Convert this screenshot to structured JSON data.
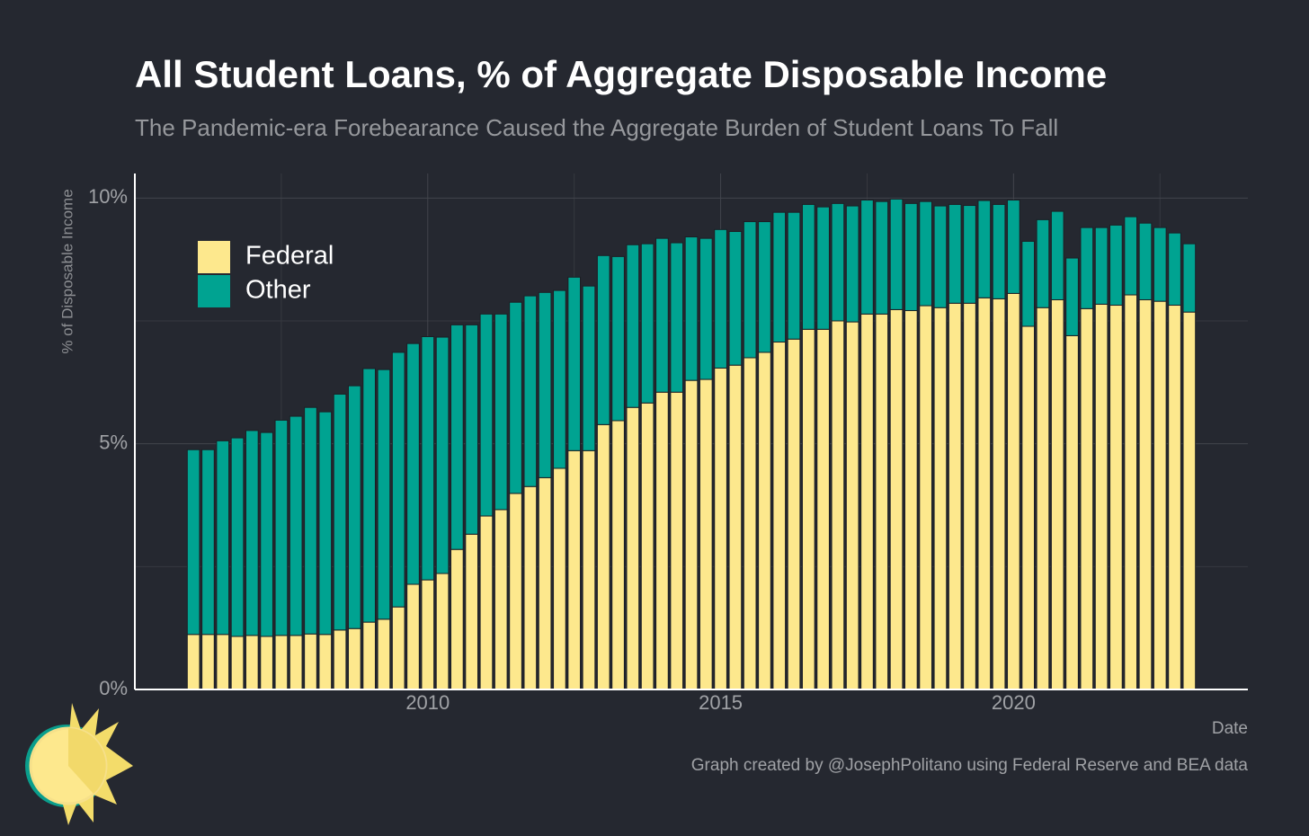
{
  "chart_data": {
    "type": "stacked-bar",
    "title": "All Student Loans, % of Aggregate Disposable Income",
    "subtitle": "The Pandemic-era Forebearance Caused the Aggregate Burden of Student Loans To Fall",
    "y_label": "% of Disposable Income",
    "x_label": "Date",
    "caption": "Graph created by @JosephPolitano using Federal Reserve and BEA data",
    "x": [
      2006,
      2006.25,
      2006.5,
      2006.75,
      2007,
      2007.25,
      2007.5,
      2007.75,
      2008,
      2008.25,
      2008.5,
      2008.75,
      2009,
      2009.25,
      2009.5,
      2009.75,
      2010,
      2010.25,
      2010.5,
      2010.75,
      2011,
      2011.25,
      2011.5,
      2011.75,
      2012,
      2012.25,
      2012.5,
      2012.75,
      2013,
      2013.25,
      2013.5,
      2013.75,
      2014,
      2014.25,
      2014.5,
      2014.75,
      2015,
      2015.25,
      2015.5,
      2015.75,
      2016,
      2016.25,
      2016.5,
      2016.75,
      2017,
      2017.25,
      2017.5,
      2017.75,
      2018,
      2018.25,
      2018.5,
      2018.75,
      2019,
      2019.25,
      2019.5,
      2019.75,
      2020,
      2020.25,
      2020.5,
      2020.75,
      2021,
      2021.25,
      2021.5,
      2021.75,
      2022,
      2022.25,
      2022.5,
      2022.75,
      2023
    ],
    "series": [
      {
        "name": "Federal",
        "color": "#fde88d",
        "values": [
          1.12,
          1.12,
          1.12,
          1.08,
          1.1,
          1.08,
          1.1,
          1.1,
          1.13,
          1.12,
          1.21,
          1.24,
          1.37,
          1.43,
          1.68,
          2.14,
          2.23,
          2.36,
          2.85,
          3.16,
          3.53,
          3.66,
          3.99,
          4.13,
          4.31,
          4.5,
          4.86,
          4.86,
          5.39,
          5.47,
          5.74,
          5.83,
          6.05,
          6.05,
          6.29,
          6.31,
          6.54,
          6.6,
          6.75,
          6.86,
          7.07,
          7.13,
          7.33,
          7.33,
          7.5,
          7.48,
          7.64,
          7.64,
          7.73,
          7.71,
          7.81,
          7.77,
          7.86,
          7.86,
          7.97,
          7.95,
          8.06,
          7.39,
          7.77,
          7.93,
          7.2,
          7.75,
          7.84,
          7.82,
          8.03,
          7.93,
          7.9,
          7.82,
          7.68
        ]
      },
      {
        "name": "Other",
        "color": "#00a391",
        "values": [
          3.76,
          3.76,
          3.94,
          4.04,
          4.17,
          4.15,
          4.38,
          4.46,
          4.61,
          4.53,
          4.8,
          4.94,
          5.16,
          5.08,
          5.18,
          4.9,
          4.95,
          4.81,
          4.57,
          4.26,
          4.11,
          3.98,
          3.89,
          3.88,
          3.77,
          3.62,
          3.53,
          3.35,
          3.44,
          3.34,
          3.31,
          3.24,
          3.13,
          3.04,
          2.92,
          2.87,
          2.82,
          2.72,
          2.77,
          2.66,
          2.64,
          2.58,
          2.54,
          2.49,
          2.39,
          2.36,
          2.32,
          2.29,
          2.25,
          2.18,
          2.12,
          2.07,
          2.01,
          1.99,
          1.98,
          1.92,
          1.9,
          1.73,
          1.79,
          1.8,
          1.58,
          1.65,
          1.56,
          1.63,
          1.59,
          1.56,
          1.5,
          1.47,
          1.39
        ]
      }
    ],
    "xlim": [
      2005,
      2024
    ],
    "xticks": [
      2010,
      2015,
      2020
    ],
    "minor_xticks": [
      2007.5,
      2012.5,
      2017.5,
      2022.5
    ],
    "ylim": [
      0,
      10.5
    ],
    "yticks": [
      {
        "value": 0,
        "label": "0%"
      },
      {
        "value": 5,
        "label": "5%"
      },
      {
        "value": 10,
        "label": "10%"
      }
    ],
    "minor_yticks": [
      2.5,
      7.5
    ],
    "grid": true,
    "legend": "top-left"
  }
}
